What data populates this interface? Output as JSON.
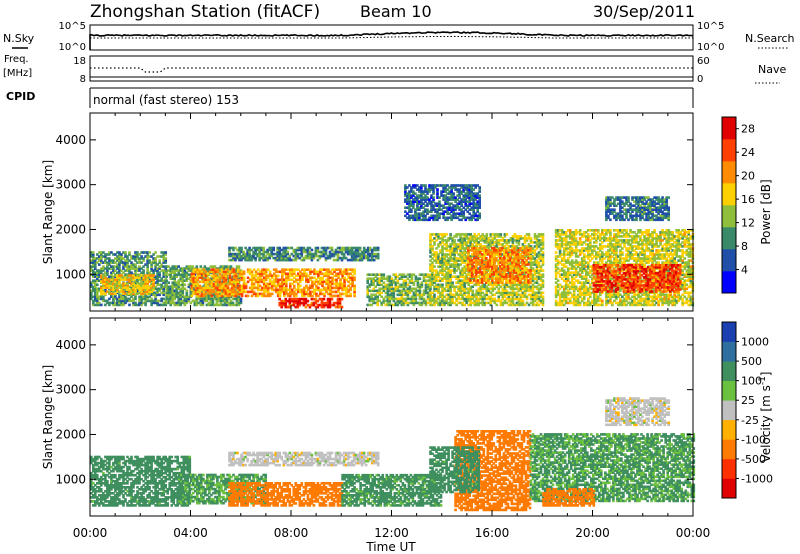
{
  "header": {
    "station": "Zhongshan Station (fitACF)",
    "beam": "Beam 10",
    "date": "30/Sep/2011"
  },
  "left_labels": {
    "nsky": "N.Sky",
    "freq_1": "Freq.",
    "freq_2": "[MHz]",
    "cpid": "CPID"
  },
  "right_labels": {
    "nsearch": "N.Search",
    "nave": "Nave"
  },
  "cpid_text": "normal (fast stereo) 153",
  "noise_axis": {
    "top": "10^5",
    "bottom": "10^0"
  },
  "freq_axis": {
    "top": "18",
    "bottom": "8"
  },
  "nave_axis": {
    "top": "60",
    "bottom": "0"
  },
  "colors": {
    "power": [
      "#0000ff",
      "#1f4fa8",
      "#3a8a6a",
      "#8fbf3a",
      "#ffd000",
      "#ff8c00",
      "#ff4000",
      "#e00000"
    ],
    "velocity": [
      "#1a3fb0",
      "#2f6fa0",
      "#3f8f5f",
      "#6cc040",
      "#c0c0c0",
      "#ffb000",
      "#ff7a00",
      "#ff3000",
      "#e00000"
    ]
  },
  "chart_data": [
    {
      "type": "heatmap",
      "panel": "power",
      "ylabel": "Slant Range [km]",
      "ylim": [
        180,
        4600
      ],
      "yticks": [
        "1000",
        "2000",
        "3000",
        "4000"
      ],
      "xlim": [
        0,
        24
      ],
      "colorbar": {
        "label": "Power [dB]",
        "ticks": [
          "4",
          "8",
          "12",
          "16",
          "20",
          "24",
          "28"
        ],
        "range": [
          0,
          30
        ]
      },
      "bands": [
        {
          "t0": 0.0,
          "t1": 3.0,
          "r0": 300,
          "r1": 1500,
          "v": 10
        },
        {
          "t0": 0.4,
          "t1": 2.5,
          "r0": 550,
          "r1": 1000,
          "v": 17
        },
        {
          "t0": 3.0,
          "t1": 6.0,
          "r0": 300,
          "r1": 1200,
          "v": 11
        },
        {
          "t0": 4.0,
          "t1": 10.5,
          "r0": 500,
          "r1": 1100,
          "v": 20
        },
        {
          "t0": 5.5,
          "t1": 11.5,
          "r0": 1300,
          "r1": 1600,
          "v": 9
        },
        {
          "t0": 7.5,
          "t1": 10.0,
          "r0": 250,
          "r1": 450,
          "v": 26
        },
        {
          "t0": 11.0,
          "t1": 13.5,
          "r0": 300,
          "r1": 1000,
          "v": 12
        },
        {
          "t0": 13.5,
          "t1": 18.0,
          "r0": 300,
          "r1": 1900,
          "v": 14
        },
        {
          "t0": 15.0,
          "t1": 17.5,
          "r0": 800,
          "r1": 1600,
          "v": 21
        },
        {
          "t0": 12.5,
          "t1": 15.5,
          "r0": 2200,
          "r1": 3000,
          "v": 7
        },
        {
          "t0": 18.5,
          "t1": 24.0,
          "r0": 300,
          "r1": 2000,
          "v": 15
        },
        {
          "t0": 20.0,
          "t1": 23.5,
          "r0": 600,
          "r1": 1200,
          "v": 25
        },
        {
          "t0": 20.5,
          "t1": 23.0,
          "r0": 2200,
          "r1": 2700,
          "v": 8
        }
      ]
    },
    {
      "type": "heatmap",
      "panel": "velocity",
      "ylabel": "Slant Range [km]",
      "ylim": [
        180,
        4600
      ],
      "yticks": [
        "1000",
        "2000",
        "3000",
        "4000"
      ],
      "xlim": [
        0,
        24
      ],
      "xlabel": "Time UT",
      "xticks": [
        "00:00",
        "04:00",
        "08:00",
        "12:00",
        "16:00",
        "20:00",
        "00:00"
      ],
      "colorbar": {
        "label": "Velocity [m s^-1]",
        "ticks": [
          "1000",
          "500",
          "100",
          "25",
          "-25",
          "-100",
          "-500",
          "-1000"
        ]
      },
      "bands": [
        {
          "t0": 0.0,
          "t1": 4.0,
          "r0": 400,
          "r1": 1500,
          "v": 200
        },
        {
          "t0": 3.5,
          "t1": 7.0,
          "r0": 450,
          "r1": 1100,
          "v": 120
        },
        {
          "t0": 5.5,
          "t1": 10.0,
          "r0": 400,
          "r1": 900,
          "v": -300
        },
        {
          "t0": 5.5,
          "t1": 11.5,
          "r0": 1300,
          "r1": 1600,
          "v": 0
        },
        {
          "t0": 10.0,
          "t1": 14.0,
          "r0": 400,
          "r1": 1100,
          "v": 150
        },
        {
          "t0": 14.5,
          "t1": 17.5,
          "r0": 300,
          "r1": 2100,
          "v": -250
        },
        {
          "t0": 13.5,
          "t1": 15.5,
          "r0": 700,
          "r1": 1700,
          "v": 200
        },
        {
          "t0": 17.5,
          "t1": 24.0,
          "r0": 500,
          "r1": 2000,
          "v": 120
        },
        {
          "t0": 20.5,
          "t1": 23.0,
          "r0": 2200,
          "r1": 2800,
          "v": 0
        },
        {
          "t0": 18.0,
          "t1": 20.0,
          "r0": 400,
          "r1": 800,
          "v": -200
        }
      ]
    }
  ]
}
